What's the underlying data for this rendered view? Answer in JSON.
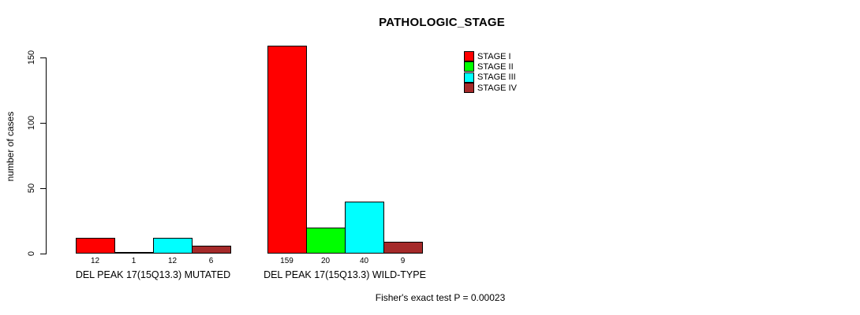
{
  "chart_data": {
    "type": "bar",
    "title": "PATHOLOGIC_STAGE",
    "xlabel": "",
    "ylabel": "number of cases",
    "ylim": [
      0,
      150
    ],
    "yticks": [
      0,
      50,
      100,
      150
    ],
    "grid": false,
    "legend_position": "top-right",
    "categories": [
      "DEL PEAK 17(15Q13.3) MUTATED",
      "DEL PEAK 17(15Q13.3) WILD-TYPE"
    ],
    "series": [
      {
        "name": "STAGE I",
        "color": "#ff0000",
        "values": [
          12,
          159
        ]
      },
      {
        "name": "STAGE II",
        "color": "#00ff00",
        "values": [
          1,
          20
        ]
      },
      {
        "name": "STAGE III",
        "color": "#00ffff",
        "values": [
          12,
          40
        ]
      },
      {
        "name": "STAGE IV",
        "color": "#a52a2a",
        "values": [
          6,
          9
        ]
      }
    ],
    "annotation": "Fisher's exact test P = 0.00023"
  }
}
